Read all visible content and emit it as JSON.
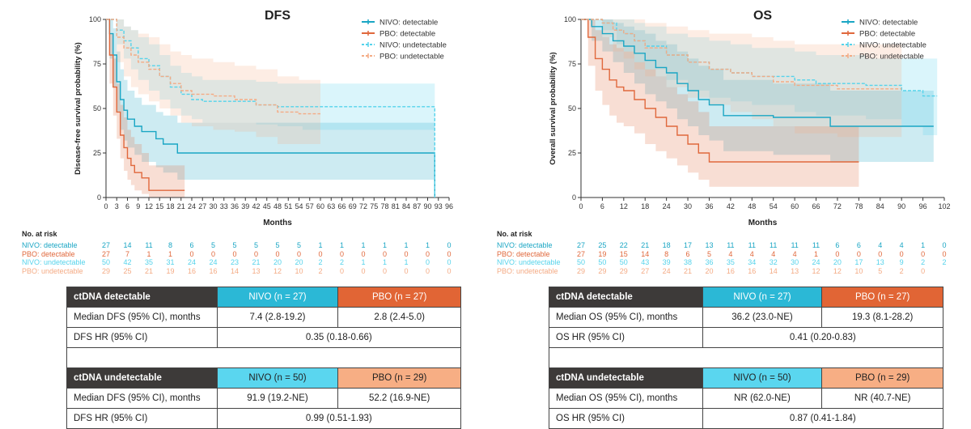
{
  "colors": {
    "nivo_detectable": "#1aa6c4",
    "pbo_detectable": "#e0683c",
    "nivo_undetectable": "#55d3eb",
    "pbo_undetectable": "#f4ab85"
  },
  "chart_data": [
    {
      "type": "line",
      "title": "DFS",
      "ylabel": "Disease-free survival probability (%)",
      "xlabel": "Months",
      "xticks": [
        0,
        3,
        6,
        9,
        12,
        15,
        18,
        21,
        24,
        27,
        30,
        33,
        36,
        39,
        42,
        45,
        48,
        51,
        54,
        57,
        60,
        63,
        66,
        69,
        72,
        75,
        78,
        81,
        84,
        87,
        90,
        93,
        96
      ],
      "yticks": [
        0,
        25,
        50,
        75,
        100
      ],
      "xlim": [
        0,
        96
      ],
      "ylim": [
        0,
        100
      ],
      "legend": "top-right",
      "series": [
        {
          "name": "NIVO: detectable",
          "color_key": "nivo_detectable",
          "x": [
            0,
            1,
            2,
            3,
            4,
            5,
            6,
            8,
            10,
            14,
            16,
            20,
            58,
            92,
            92
          ],
          "y": [
            100,
            92,
            80,
            65,
            55,
            49,
            44,
            40,
            37,
            33,
            30,
            25,
            25,
            25,
            0
          ],
          "ci_low": [
            100,
            78,
            62,
            48,
            38,
            32,
            28,
            24,
            20,
            17,
            14,
            10,
            10,
            10,
            10
          ],
          "ci_high": [
            100,
            100,
            95,
            82,
            72,
            66,
            60,
            56,
            52,
            48,
            46,
            42,
            42,
            42,
            42
          ]
        },
        {
          "name": "PBO: detectable",
          "color_key": "pbo_detectable",
          "x": [
            0,
            1,
            2,
            3,
            4,
            5,
            6,
            7,
            8,
            10,
            12,
            22
          ],
          "y": [
            100,
            80,
            62,
            48,
            35,
            28,
            22,
            18,
            14,
            11,
            4,
            4
          ],
          "ci_low": [
            100,
            64,
            46,
            33,
            22,
            15,
            10,
            7,
            4,
            2,
            0,
            0
          ],
          "ci_high": [
            100,
            92,
            78,
            64,
            52,
            45,
            38,
            34,
            30,
            25,
            18,
            18
          ]
        },
        {
          "name": "NIVO: undetectable",
          "color_key": "nivo_undetectable",
          "x": [
            0,
            3,
            5,
            7,
            9,
            12,
            15,
            18,
            21,
            24,
            27,
            36,
            42,
            48,
            55,
            60,
            66,
            90,
            92,
            92
          ],
          "y": [
            100,
            94,
            88,
            84,
            78,
            74,
            68,
            62,
            58,
            55,
            54,
            54,
            52,
            51,
            51,
            51,
            51,
            51,
            51,
            0
          ],
          "ci_low": [
            100,
            86,
            78,
            72,
            66,
            60,
            55,
            50,
            46,
            44,
            42,
            42,
            41,
            40,
            38,
            38,
            38,
            38,
            38,
            38
          ],
          "ci_high": [
            100,
            100,
            96,
            94,
            90,
            86,
            80,
            74,
            70,
            68,
            66,
            66,
            65,
            64,
            64,
            64,
            64,
            64,
            64,
            64
          ]
        },
        {
          "name": "PBO: undetectable",
          "color_key": "pbo_undetectable",
          "x": [
            0,
            3,
            5,
            7,
            9,
            12,
            15,
            18,
            21,
            24,
            30,
            36,
            42,
            48,
            54,
            60
          ],
          "y": [
            100,
            90,
            84,
            80,
            76,
            72,
            68,
            64,
            60,
            58,
            57,
            55,
            52,
            48,
            47,
            47
          ],
          "ci_low": [
            100,
            76,
            68,
            62,
            58,
            54,
            50,
            46,
            42,
            40,
            38,
            37,
            34,
            30,
            30,
            30
          ],
          "ci_high": [
            100,
            100,
            96,
            94,
            92,
            90,
            86,
            82,
            80,
            78,
            76,
            74,
            72,
            68,
            66,
            66
          ]
        }
      ]
    },
    {
      "type": "line",
      "title": "OS",
      "ylabel": "Overall survival probability (%)",
      "xlabel": "Months",
      "xticks": [
        0,
        6,
        12,
        18,
        24,
        30,
        36,
        42,
        48,
        54,
        60,
        66,
        72,
        78,
        84,
        90,
        96,
        102
      ],
      "yticks": [
        0,
        25,
        50,
        75,
        100
      ],
      "xlim": [
        0,
        102
      ],
      "ylim": [
        0,
        100
      ],
      "legend": "top-right",
      "series": [
        {
          "name": "NIVO: detectable",
          "color_key": "nivo_detectable",
          "x": [
            0,
            3,
            6,
            9,
            12,
            15,
            18,
            21,
            24,
            27,
            30,
            33,
            36,
            40,
            48,
            54,
            60,
            70,
            80,
            99
          ],
          "y": [
            100,
            96,
            92,
            88,
            85,
            81,
            77,
            73,
            70,
            64,
            60,
            55,
            52,
            46,
            46,
            45,
            45,
            40,
            40,
            40
          ],
          "ci_low": [
            100,
            88,
            82,
            76,
            70,
            64,
            58,
            54,
            50,
            44,
            40,
            35,
            32,
            26,
            26,
            24,
            24,
            20,
            20,
            20
          ],
          "ci_high": [
            100,
            100,
            100,
            98,
            96,
            94,
            92,
            88,
            86,
            82,
            78,
            74,
            72,
            66,
            66,
            64,
            64,
            60,
            60,
            60
          ]
        },
        {
          "name": "PBO: detectable",
          "color_key": "pbo_detectable",
          "x": [
            0,
            2,
            4,
            6,
            8,
            10,
            12,
            15,
            18,
            21,
            24,
            27,
            30,
            33,
            36,
            42,
            50,
            60,
            78
          ],
          "y": [
            100,
            90,
            78,
            72,
            66,
            62,
            60,
            55,
            50,
            45,
            40,
            35,
            30,
            25,
            20,
            20,
            20,
            20,
            20
          ],
          "ci_low": [
            100,
            74,
            60,
            52,
            46,
            42,
            40,
            36,
            30,
            26,
            22,
            18,
            14,
            10,
            6,
            6,
            6,
            6,
            6
          ],
          "ci_high": [
            100,
            100,
            94,
            90,
            86,
            84,
            82,
            76,
            72,
            68,
            62,
            58,
            54,
            48,
            40,
            40,
            40,
            40,
            40
          ]
        },
        {
          "name": "NIVO: undetectable",
          "color_key": "nivo_undetectable",
          "x": [
            0,
            6,
            10,
            12,
            15,
            18,
            24,
            30,
            36,
            42,
            48,
            60,
            66,
            80,
            90,
            96,
            100
          ],
          "y": [
            100,
            98,
            94,
            92,
            88,
            85,
            80,
            76,
            72,
            70,
            68,
            66,
            64,
            63,
            60,
            57,
            57
          ],
          "ci_low": [
            100,
            94,
            86,
            82,
            76,
            72,
            66,
            60,
            56,
            54,
            52,
            48,
            46,
            44,
            40,
            35,
            35
          ],
          "ci_high": [
            100,
            100,
            100,
            100,
            98,
            96,
            92,
            90,
            88,
            86,
            84,
            82,
            80,
            78,
            78,
            78,
            78
          ]
        },
        {
          "name": "PBO: undetectable",
          "color_key": "pbo_undetectable",
          "x": [
            0,
            6,
            9,
            12,
            15,
            18,
            24,
            30,
            36,
            42,
            48,
            54,
            60,
            72,
            84,
            90
          ],
          "y": [
            100,
            98,
            94,
            92,
            88,
            84,
            80,
            76,
            72,
            70,
            68,
            65,
            63,
            61,
            61,
            61
          ],
          "ci_low": [
            100,
            90,
            82,
            78,
            72,
            68,
            62,
            56,
            52,
            48,
            44,
            40,
            36,
            34,
            34,
            34
          ],
          "ci_high": [
            100,
            100,
            100,
            100,
            100,
            98,
            96,
            94,
            92,
            92,
            90,
            88,
            86,
            86,
            86,
            86
          ]
        }
      ]
    }
  ],
  "risk": [
    {
      "title": "No. at risk",
      "xticks": [
        0,
        6,
        12,
        18,
        24,
        30,
        36,
        42,
        48,
        54,
        60,
        66,
        72,
        78,
        84,
        90,
        96
      ],
      "rows": [
        {
          "label": "NIVO: detectable",
          "color_key": "nivo_detectable",
          "values": [
            "27",
            "14",
            "11",
            "8",
            "6",
            "5",
            "5",
            "5",
            "5",
            "5",
            "1",
            "1",
            "1",
            "1",
            "1",
            "1",
            "0"
          ]
        },
        {
          "label": "PBO: detectable",
          "color_key": "pbo_detectable",
          "values": [
            "27",
            "7",
            "1",
            "1",
            "0",
            "0",
            "0",
            "0",
            "0",
            "0",
            "0",
            "0",
            "0",
            "0",
            "0",
            "0",
            "0"
          ]
        },
        {
          "label": "NIVO: undetectable",
          "color_key": "nivo_undetectable",
          "values": [
            "50",
            "42",
            "35",
            "31",
            "24",
            "24",
            "23",
            "21",
            "20",
            "20",
            "2",
            "2",
            "1",
            "1",
            "1",
            "0",
            "0"
          ]
        },
        {
          "label": "PBO: undetectable",
          "color_key": "pbo_undetectable",
          "values": [
            "29",
            "25",
            "21",
            "19",
            "16",
            "16",
            "14",
            "13",
            "12",
            "10",
            "2",
            "0",
            "0",
            "0",
            "0",
            "0",
            "0"
          ]
        }
      ]
    },
    {
      "title": "No. at risk",
      "xticks": [
        0,
        6,
        12,
        18,
        24,
        30,
        36,
        42,
        48,
        54,
        60,
        66,
        72,
        78,
        84,
        90,
        96,
        102
      ],
      "rows": [
        {
          "label": "NIVO: detectable",
          "color_key": "nivo_detectable",
          "values": [
            "27",
            "25",
            "22",
            "21",
            "18",
            "17",
            "13",
            "11",
            "11",
            "11",
            "11",
            "11",
            "6",
            "6",
            "4",
            "4",
            "1",
            "0"
          ]
        },
        {
          "label": "PBO: detectable",
          "color_key": "pbo_detectable",
          "values": [
            "27",
            "19",
            "15",
            "14",
            "8",
            "6",
            "5",
            "4",
            "4",
            "4",
            "4",
            "1",
            "0",
            "0",
            "0",
            "0",
            "0",
            "0"
          ]
        },
        {
          "label": "NIVO: undetectable",
          "color_key": "nivo_undetectable",
          "values": [
            "50",
            "50",
            "50",
            "43",
            "39",
            "38",
            "36",
            "35",
            "34",
            "32",
            "30",
            "24",
            "20",
            "17",
            "13",
            "9",
            "2",
            "2"
          ]
        },
        {
          "label": "PBO: undetectable",
          "color_key": "pbo_undetectable",
          "values": [
            "29",
            "29",
            "29",
            "27",
            "24",
            "21",
            "20",
            "16",
            "16",
            "14",
            "13",
            "12",
            "12",
            "10",
            "5",
            "2",
            "0",
            ""
          ]
        }
      ]
    }
  ],
  "tables": {
    "dfs": {
      "det_header": "ctDNA detectable",
      "det_nivo": "NIVO (n = 27)",
      "det_pbo": "PBO (n = 27)",
      "det_median_label": "Median DFS (95% CI), months",
      "det_median_nivo": "7.4 (2.8-19.2)",
      "det_median_pbo": "2.8 (2.4-5.0)",
      "det_hr_label": "DFS HR (95% CI)",
      "det_hr": "0.35 (0.18-0.66)",
      "und_header": "ctDNA undetectable",
      "und_nivo": "NIVO (n = 50)",
      "und_pbo": "PBO (n = 29)",
      "und_median_label": "Median DFS (95% CI), months",
      "und_median_nivo": "91.9 (19.2-NE)",
      "und_median_pbo": "52.2 (16.9-NE)",
      "und_hr_label": "DFS HR (95% CI)",
      "und_hr": "0.99 (0.51-1.93)"
    },
    "os": {
      "det_header": "ctDNA detectable",
      "det_nivo": "NIVO (n = 27)",
      "det_pbo": "PBO (n = 27)",
      "det_median_label": "Median OS (95% CI), months",
      "det_median_nivo": "36.2 (23.0-NE)",
      "det_median_pbo": "19.3 (8.1-28.2)",
      "det_hr_label": "OS HR (95% CI)",
      "det_hr": "0.41 (0.20-0.83)",
      "und_header": "ctDNA undetectable",
      "und_nivo": "NIVO (n = 50)",
      "und_pbo": "PBO (n = 29)",
      "und_median_label": "Median OS (95% CI), months",
      "und_median_nivo": "NR (62.0-NE)",
      "und_median_pbo": "NR (40.7-NE)",
      "und_hr_label": "OS HR (95% CI)",
      "und_hr": "0.87 (0.41-1.84)"
    }
  }
}
